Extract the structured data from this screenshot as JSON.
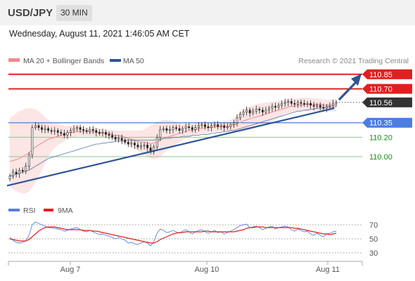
{
  "header": {
    "symbol": "USD/JPY",
    "interval": "30 MIN"
  },
  "datetime": "Wednesday, August 11, 2021 1:46:05 AM CET",
  "colors": {
    "ma20_bollinger": "#f08a8a",
    "ma50": "#2f5496",
    "resistance": "#e02020",
    "support": "#4a7fe0",
    "target": "#1a8a1a",
    "current": "#333333",
    "rsi": "#5b7fd6",
    "rsi_ma": "#e02020"
  },
  "legend": {
    "ma20": "MA 20 + Bollinger Bands",
    "ma50": "MA 50",
    "credit": "Research © 2021 Trading Central",
    "rsi": "RSI",
    "rsi_ma": "9MA"
  },
  "chart_data": [
    {
      "type": "candlestick",
      "ylim": [
        109.55,
        110.95
      ],
      "x_ticks": [
        "Aug 7",
        "Aug 10",
        "Aug 11"
      ],
      "levels": [
        {
          "label": "110.85",
          "value": 110.85,
          "kind": "resistance"
        },
        {
          "label": "110.70",
          "value": 110.7,
          "kind": "resistance"
        },
        {
          "label": "110.56",
          "value": 110.56,
          "kind": "current"
        },
        {
          "label": "110.35",
          "value": 110.35,
          "kind": "support"
        },
        {
          "label": "110.20",
          "value": 110.2,
          "kind": "target"
        },
        {
          "label": "110.00",
          "value": 110.0,
          "kind": "target"
        }
      ],
      "current_price": 110.56,
      "trendline": {
        "from": 109.7,
        "to": 110.5
      },
      "close": [
        109.8,
        109.84,
        109.82,
        109.86,
        109.85,
        109.9,
        110.02,
        110.3,
        110.32,
        110.3,
        110.28,
        110.29,
        110.27,
        110.26,
        110.27,
        110.25,
        110.24,
        110.22,
        110.25,
        110.27,
        110.29,
        110.3,
        110.28,
        110.27,
        110.26,
        110.28,
        110.27,
        110.25,
        110.24,
        110.25,
        110.23,
        110.22,
        110.2,
        110.18,
        110.19,
        110.17,
        110.15,
        110.13,
        110.14,
        110.12,
        110.1,
        110.11,
        110.12,
        110.09,
        110.05,
        110.1,
        110.2,
        110.28,
        110.29,
        110.27,
        110.28,
        110.3,
        110.29,
        110.27,
        110.29,
        110.31,
        110.3,
        110.28,
        110.3,
        110.32,
        110.33,
        110.31,
        110.3,
        110.32,
        110.33,
        110.31,
        110.32,
        110.3,
        110.31,
        110.33,
        110.35,
        110.4,
        110.44,
        110.46,
        110.48,
        110.45,
        110.47,
        110.49,
        110.48,
        110.46,
        110.48,
        110.5,
        110.52,
        110.51,
        110.53,
        110.55,
        110.56,
        110.57,
        110.55,
        110.54,
        110.56,
        110.55,
        110.54,
        110.55,
        110.53,
        110.52,
        110.53,
        110.51,
        110.5,
        110.52,
        110.53,
        110.55,
        110.56
      ],
      "ma20": [
        109.95,
        109.96,
        109.97,
        109.98,
        110.0,
        110.02,
        110.04,
        110.07,
        110.1,
        110.12,
        110.14,
        110.16,
        110.18,
        110.19,
        110.2,
        110.21,
        110.22,
        110.23,
        110.24,
        110.25,
        110.25,
        110.26,
        110.26,
        110.26,
        110.26,
        110.26,
        110.26,
        110.25,
        110.25,
        110.25,
        110.24,
        110.24,
        110.23,
        110.22,
        110.22,
        110.21,
        110.2,
        110.19,
        110.18,
        110.17,
        110.16,
        110.15,
        110.15,
        110.14,
        110.13,
        110.14,
        110.15,
        110.17,
        110.19,
        110.2,
        110.21,
        110.22,
        110.23,
        110.24,
        110.25,
        110.26,
        110.27,
        110.27,
        110.28,
        110.29,
        110.29,
        110.3,
        110.3,
        110.3,
        110.31,
        110.31,
        110.31,
        110.31,
        110.31,
        110.32,
        110.33,
        110.34,
        110.35,
        110.37,
        110.38,
        110.39,
        110.4,
        110.41,
        110.42,
        110.43,
        110.44,
        110.45,
        110.46,
        110.47,
        110.48,
        110.49,
        110.5,
        110.51,
        110.52,
        110.52,
        110.53,
        110.53,
        110.54,
        110.54,
        110.54,
        110.54,
        110.54,
        110.54,
        110.53,
        110.53,
        110.53,
        110.53,
        110.54
      ],
      "bb_upper": [
        110.4,
        110.42,
        110.45,
        110.47,
        110.48,
        110.5,
        110.5,
        110.5,
        110.49,
        110.47,
        110.44,
        110.41,
        110.38,
        110.36,
        110.35,
        110.34,
        110.33,
        110.32,
        110.32,
        110.32,
        110.31,
        110.31,
        110.31,
        110.31,
        110.3,
        110.3,
        110.3,
        110.3,
        110.29,
        110.29,
        110.29,
        110.28,
        110.28,
        110.27,
        110.27,
        110.27,
        110.27,
        110.27,
        110.27,
        110.27,
        110.27,
        110.27,
        110.28,
        110.3,
        110.32,
        110.34,
        110.36,
        110.37,
        110.38,
        110.38,
        110.38,
        110.37,
        110.36,
        110.35,
        110.34,
        110.34,
        110.34,
        110.34,
        110.34,
        110.35,
        110.35,
        110.36,
        110.36,
        110.36,
        110.36,
        110.36,
        110.36,
        110.37,
        110.37,
        110.38,
        110.4,
        110.43,
        110.46,
        110.49,
        110.51,
        110.52,
        110.53,
        110.54,
        110.55,
        110.55,
        110.56,
        110.56,
        110.57,
        110.57,
        110.58,
        110.58,
        110.59,
        110.6,
        110.6,
        110.6,
        110.6,
        110.61,
        110.61,
        110.61,
        110.61,
        110.6,
        110.6,
        110.6,
        110.59,
        110.59,
        110.59,
        110.59,
        110.6
      ],
      "bb_lower": [
        109.68,
        109.66,
        109.64,
        109.63,
        109.62,
        109.62,
        109.64,
        109.68,
        109.73,
        109.79,
        109.86,
        109.93,
        110.0,
        110.05,
        110.09,
        110.12,
        110.14,
        110.16,
        110.18,
        110.19,
        110.2,
        110.21,
        110.21,
        110.21,
        110.21,
        110.21,
        110.21,
        110.2,
        110.2,
        110.2,
        110.19,
        110.19,
        110.18,
        110.17,
        110.16,
        110.15,
        110.14,
        110.12,
        110.1,
        110.08,
        110.06,
        110.04,
        110.02,
        110.0,
        109.98,
        109.97,
        109.98,
        110.0,
        110.03,
        110.06,
        110.09,
        110.11,
        110.13,
        110.15,
        110.17,
        110.19,
        110.2,
        110.21,
        110.22,
        110.23,
        110.24,
        110.24,
        110.24,
        110.25,
        110.25,
        110.26,
        110.26,
        110.26,
        110.26,
        110.26,
        110.26,
        110.26,
        110.25,
        110.26,
        110.27,
        110.28,
        110.29,
        110.3,
        110.31,
        110.32,
        110.33,
        110.34,
        110.36,
        110.38,
        110.4,
        110.42,
        110.44,
        110.45,
        110.46,
        110.46,
        110.47,
        110.47,
        110.47,
        110.47,
        110.47,
        110.47,
        110.47,
        110.47,
        110.47,
        110.47,
        110.47,
        110.47,
        110.47
      ],
      "ma50": [
        109.8,
        109.81,
        109.82,
        109.83,
        109.84,
        109.85,
        109.86,
        109.88,
        109.9,
        109.92,
        109.94,
        109.96,
        109.98,
        109.99,
        110.0,
        110.01,
        110.02,
        110.03,
        110.04,
        110.05,
        110.06,
        110.07,
        110.08,
        110.09,
        110.1,
        110.11,
        110.12,
        110.13,
        110.13,
        110.14,
        110.14,
        110.15,
        110.15,
        110.16,
        110.16,
        110.16,
        110.17,
        110.17,
        110.17,
        110.17,
        110.17,
        110.17,
        110.17,
        110.17,
        110.17,
        110.17,
        110.18,
        110.18,
        110.19,
        110.19,
        110.19,
        110.2,
        110.2,
        110.2,
        110.21,
        110.21,
        110.21,
        110.22,
        110.22,
        110.22,
        110.23,
        110.23,
        110.23,
        110.24,
        110.24,
        110.25,
        110.25,
        110.26,
        110.26,
        110.27,
        110.27,
        110.28,
        110.29,
        110.3,
        110.31,
        110.32,
        110.33,
        110.34,
        110.35,
        110.36,
        110.37,
        110.38,
        110.39,
        110.4,
        110.41,
        110.42,
        110.43,
        110.44,
        110.45,
        110.46,
        110.47,
        110.47,
        110.48,
        110.48,
        110.49,
        110.49,
        110.5,
        110.5,
        110.5,
        110.51,
        110.51,
        110.51,
        110.52
      ]
    },
    {
      "type": "line",
      "ylim": [
        20,
        80
      ],
      "y_ticks": [
        70,
        50,
        30
      ],
      "series": [
        {
          "name": "RSI",
          "values": [
            52,
            48,
            45,
            44,
            45,
            47,
            55,
            70,
            74,
            72,
            70,
            68,
            66,
            66,
            65,
            64,
            63,
            61,
            62,
            64,
            65,
            66,
            63,
            61,
            60,
            62,
            60,
            58,
            56,
            57,
            55,
            54,
            52,
            50,
            52,
            50,
            48,
            44,
            45,
            43,
            42,
            44,
            46,
            44,
            40,
            46,
            58,
            64,
            62,
            59,
            60,
            62,
            60,
            58,
            61,
            63,
            60,
            57,
            60,
            62,
            63,
            60,
            58,
            60,
            62,
            59,
            60,
            57,
            59,
            61,
            63,
            66,
            69,
            70,
            71,
            66,
            67,
            68,
            66,
            63,
            65,
            67,
            68,
            64,
            66,
            67,
            68,
            67,
            63,
            61,
            64,
            62,
            60,
            61,
            57,
            55,
            58,
            55,
            53,
            57,
            58,
            60,
            61
          ]
        },
        {
          "name": "9MA",
          "values": [
            50,
            49,
            48,
            47,
            47,
            47,
            49,
            53,
            57,
            61,
            64,
            66,
            67,
            67,
            67,
            66,
            65,
            64,
            63,
            63,
            63,
            63,
            63,
            62,
            62,
            62,
            61,
            61,
            60,
            59,
            58,
            57,
            56,
            55,
            54,
            53,
            52,
            51,
            50,
            49,
            48,
            47,
            46,
            45,
            44,
            44,
            46,
            49,
            51,
            53,
            55,
            57,
            58,
            59,
            59,
            60,
            60,
            60,
            60,
            60,
            60,
            61,
            61,
            60,
            60,
            60,
            60,
            60,
            60,
            60,
            60,
            61,
            62,
            63,
            65,
            66,
            66,
            67,
            67,
            67,
            66,
            66,
            66,
            66,
            66,
            66,
            66,
            66,
            66,
            65,
            65,
            64,
            63,
            62,
            61,
            60,
            59,
            58,
            57,
            57,
            56,
            57,
            58
          ]
        }
      ]
    }
  ]
}
